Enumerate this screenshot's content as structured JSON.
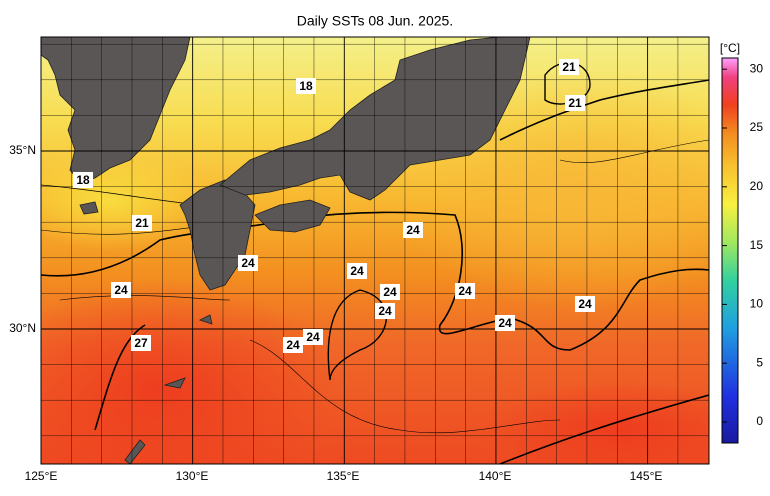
{
  "title": "Daily SSTs 08 Jun. 2025.",
  "map": {
    "lon_labels": [
      "125°E",
      "130°E",
      "135°E",
      "140°E",
      "145°E"
    ],
    "lat_labels": [
      "35°N",
      "30°N"
    ]
  },
  "colorbar": {
    "unit": "[°C]",
    "ticks": [
      "0",
      "5",
      "10",
      "15",
      "20",
      "25",
      "30"
    ]
  },
  "contour_labels": [
    "18",
    "21",
    "21",
    "18",
    "21",
    "24",
    "24",
    "24",
    "24",
    "24",
    "24",
    "24",
    "24",
    "24",
    "27",
    "24",
    "24"
  ]
}
